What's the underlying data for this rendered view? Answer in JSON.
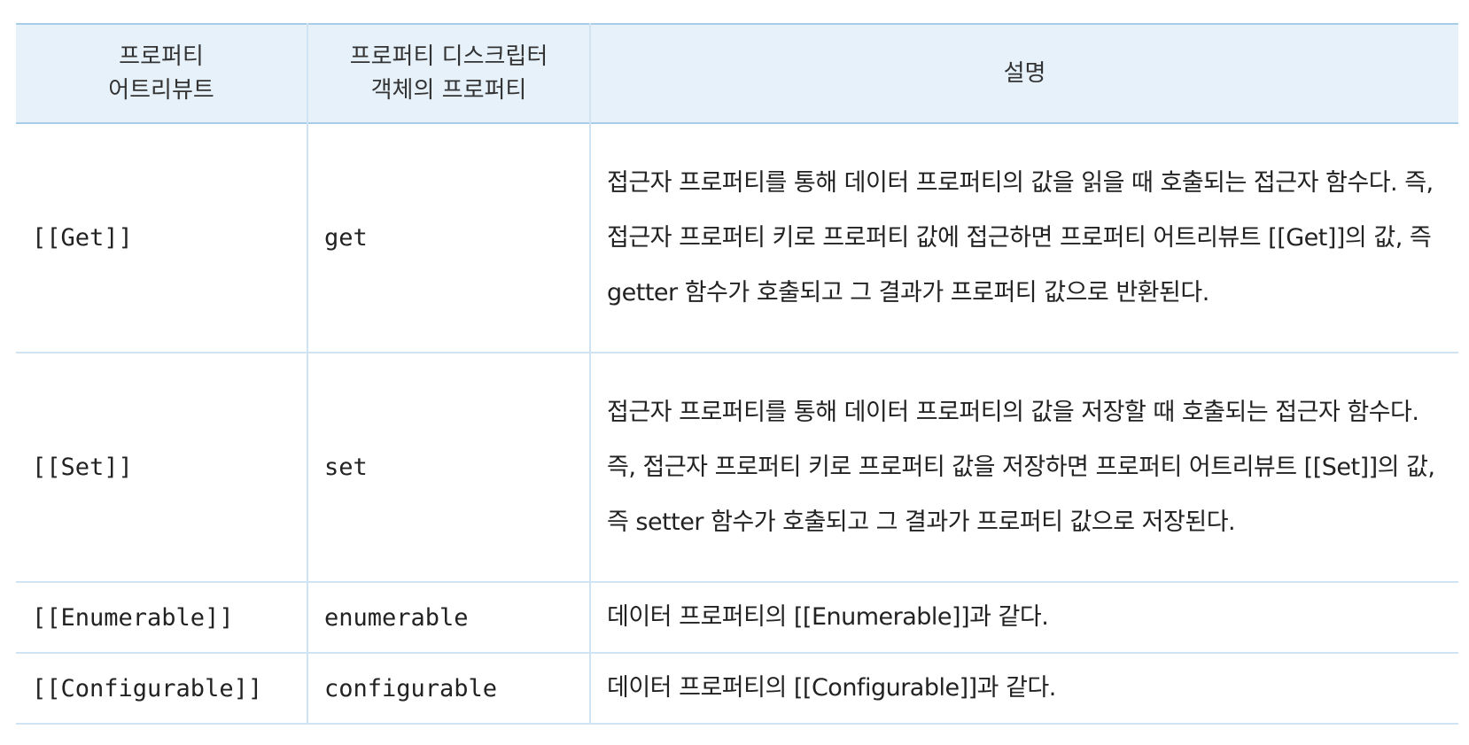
{
  "table": {
    "headers": {
      "col1_line1": "프로퍼티",
      "col1_line2": "어트리뷰트",
      "col2_line1": "프로퍼티 디스크립터",
      "col2_line2": "객체의 프로퍼티",
      "col3": "설명"
    },
    "rows": [
      {
        "attribute": "[[Get]]",
        "property": "get",
        "description": "접근자 프로퍼티를 통해 데이터 프로퍼티의 값을 읽을 때 호출되는 접근자 함수다. 즉, 접근자 프로퍼티 키로 프로퍼티 값에 접근하면 프로퍼티 어트리뷰트 [[Get]]의 값, 즉 getter 함수가 호출되고 그 결과가 프로퍼티 값으로 반환된다."
      },
      {
        "attribute": "[[Set]]",
        "property": "set",
        "description": "접근자 프로퍼티를 통해 데이터 프로퍼티의 값을 저장할 때 호출되는 접근자 함수다. 즉, 접근자 프로퍼티 키로 프로퍼티 값을 저장하면 프로퍼티 어트리뷰트 [[Set]]의 값, 즉 setter 함수가 호출되고 그 결과가 프로퍼티 값으로 저장된다."
      },
      {
        "attribute": "[[Enumerable]]",
        "property": "enumerable",
        "description": "데이터 프로퍼티의 [[Enumerable]]과 같다."
      },
      {
        "attribute": "[[Configurable]]",
        "property": "configurable",
        "description": "데이터 프로퍼티의 [[Configurable]]과 같다."
      }
    ]
  },
  "colors": {
    "header_background": "#e6f1fa",
    "border": "#cfe3f3",
    "header_border": "#a8cde8"
  }
}
